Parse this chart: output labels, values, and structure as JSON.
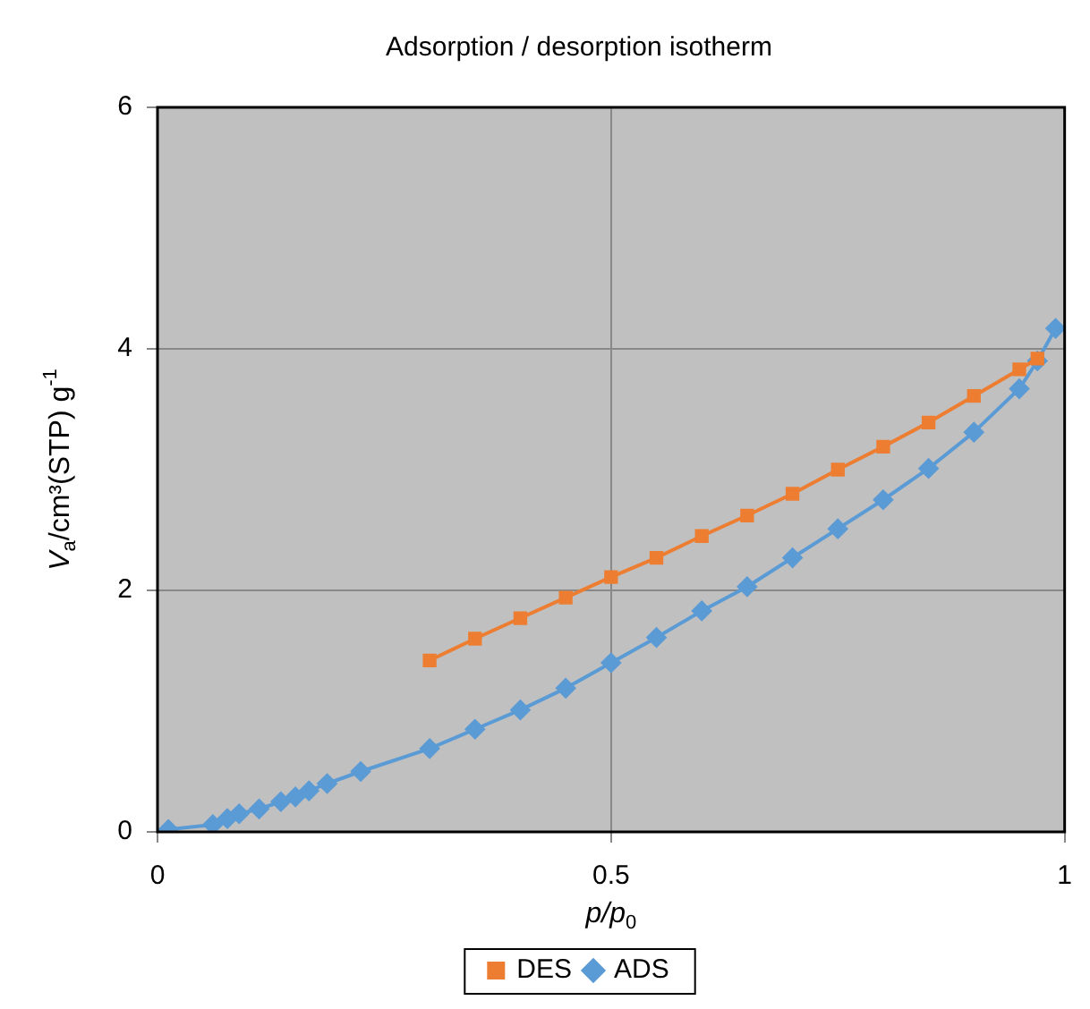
{
  "chart_data": {
    "type": "line",
    "title": "Adsorption / desorption isotherm",
    "xlabel": "p/p$_{0}$",
    "ylabel": "V$_{a}$/cm³(STP) g$^{-1}$",
    "xlim": [
      0,
      1
    ],
    "xticks": [
      0,
      0.5,
      1
    ],
    "ylim": [
      0,
      6
    ],
    "yticks": [
      0,
      2,
      4,
      6
    ],
    "grid": true,
    "legend": "bottom",
    "series": [
      {
        "name": "ADS",
        "color": "#5b9bd5",
        "marker": "diamond",
        "x": [
          0.012,
          0.061,
          0.077,
          0.09,
          0.112,
          0.136,
          0.152,
          0.167,
          0.187,
          0.224,
          0.3,
          0.35,
          0.4,
          0.45,
          0.5,
          0.55,
          0.6,
          0.65,
          0.7,
          0.75,
          0.8,
          0.85,
          0.9,
          0.95,
          0.97,
          0.99
        ],
        "values": [
          0.02,
          0.06,
          0.11,
          0.15,
          0.19,
          0.25,
          0.29,
          0.34,
          0.4,
          0.5,
          0.69,
          0.85,
          1.01,
          1.19,
          1.4,
          1.61,
          1.83,
          2.03,
          2.27,
          2.51,
          2.75,
          3.01,
          3.31,
          3.67,
          3.9,
          4.17
        ]
      },
      {
        "name": "DES",
        "color": "#ed7d31",
        "marker": "square",
        "x": [
          0.3,
          0.35,
          0.4,
          0.45,
          0.5,
          0.55,
          0.6,
          0.65,
          0.7,
          0.75,
          0.8,
          0.85,
          0.9,
          0.95,
          0.97
        ],
        "values": [
          1.42,
          1.6,
          1.77,
          1.94,
          2.11,
          2.27,
          2.45,
          2.62,
          2.8,
          3.0,
          3.19,
          3.39,
          3.61,
          3.83,
          3.92
        ]
      }
    ]
  }
}
